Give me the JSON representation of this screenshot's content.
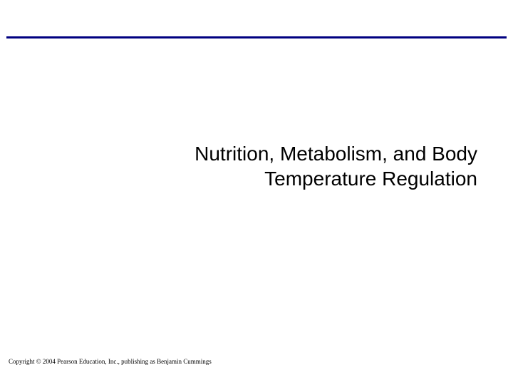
{
  "title": {
    "line1": "Nutrition, Metabolism, and Body",
    "line2": "Temperature Regulation"
  },
  "copyright": "Copyright © 2004 Pearson Education, Inc., publishing as Benjamin Cummings",
  "colors": {
    "rule": "#000080",
    "background": "#ffffff",
    "text": "#000000"
  }
}
